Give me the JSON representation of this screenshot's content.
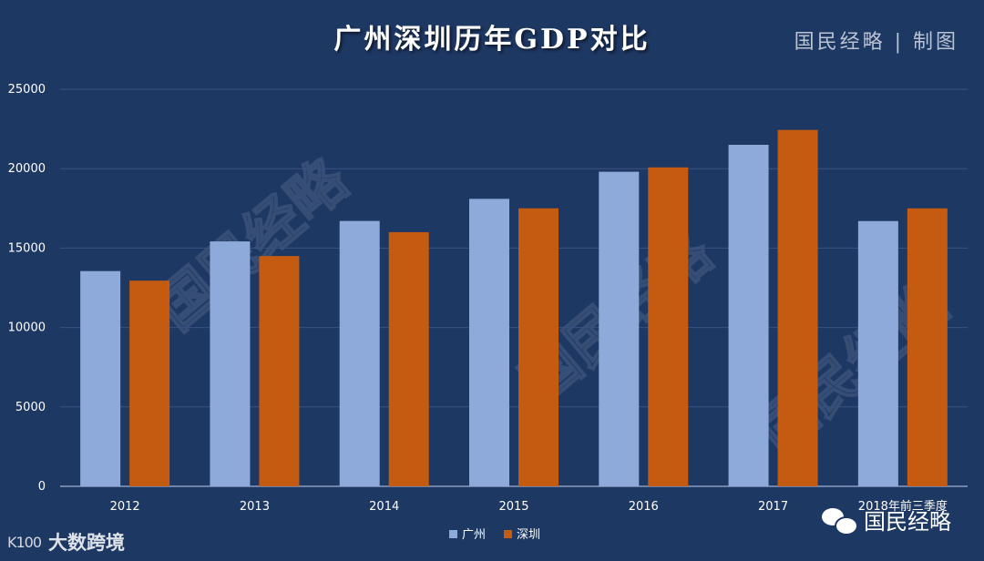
{
  "header": {
    "title": "广州深圳历年GDP对比",
    "credit": "国民经略 | 制图"
  },
  "watermark": {
    "text": "国民经略"
  },
  "overlays": {
    "wechat_account": "国民经略",
    "brand": "大数跨境",
    "wechat_icon": "wechat-icon",
    "brand_icon": "k100-icon"
  },
  "colors": {
    "background": "#1e3864",
    "guangzhou": "#8eaadb",
    "shenzhen": "#c55a11",
    "gridline": "#3a5282"
  },
  "chart_data": {
    "type": "bar",
    "title": "广州深圳历年GDP对比",
    "xlabel": "",
    "ylabel": "",
    "categories": [
      "2012",
      "2013",
      "2014",
      "2015",
      "2016",
      "2017",
      "2018年前三季度"
    ],
    "series": [
      {
        "name": "广州",
        "values": [
          13551,
          15420,
          16707,
          18100,
          19805,
          21503,
          16700
        ]
      },
      {
        "name": "深圳",
        "values": [
          12950,
          14500,
          16002,
          17503,
          20079,
          22438,
          17500
        ]
      }
    ],
    "ylim": [
      0,
      25000
    ],
    "yticks": [
      0,
      5000,
      10000,
      15000,
      20000,
      25000
    ],
    "grid": true,
    "legend": "bottom-center"
  }
}
